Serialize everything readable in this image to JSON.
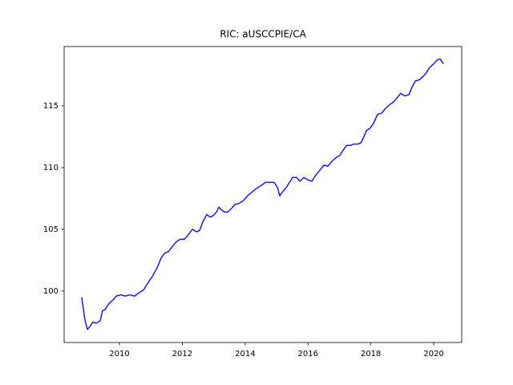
{
  "chart_data": {
    "type": "line",
    "title": "RIC: aUSCCPIE/CA",
    "x": [
      2008.8,
      2008.9,
      2008.98,
      2009.08,
      2009.16,
      2009.26,
      2009.39,
      2009.46,
      2009.54,
      2009.67,
      2009.8,
      2009.9,
      2010.05,
      2010.18,
      2010.33,
      2010.48,
      2010.64,
      2010.77,
      2010.89,
      2011.05,
      2011.2,
      2011.33,
      2011.45,
      2011.56,
      2011.68,
      2011.81,
      2011.94,
      2012.07,
      2012.17,
      2012.32,
      2012.45,
      2012.55,
      2012.65,
      2012.78,
      2012.88,
      2012.98,
      2013.09,
      2013.16,
      2013.24,
      2013.34,
      2013.44,
      2013.57,
      2013.67,
      2013.8,
      2013.93,
      2014.11,
      2014.26,
      2014.41,
      2014.54,
      2014.64,
      2014.77,
      2014.92,
      2015.03,
      2015.1,
      2015.18,
      2015.31,
      2015.41,
      2015.51,
      2015.64,
      2015.74,
      2015.87,
      2016.0,
      2016.12,
      2016.25,
      2016.38,
      2016.51,
      2016.63,
      2016.76,
      2016.89,
      2017.02,
      2017.14,
      2017.24,
      2017.35,
      2017.45,
      2017.58,
      2017.68,
      2017.78,
      2017.86,
      2017.98,
      2018.09,
      2018.21,
      2018.34,
      2018.47,
      2018.6,
      2018.72,
      2018.85,
      2018.95,
      2019.08,
      2019.21,
      2019.31,
      2019.41,
      2019.54,
      2019.67,
      2019.77,
      2019.87,
      2020.0,
      2020.1,
      2020.2,
      2020.31
    ],
    "series": [
      {
        "color": "#1c1ce0",
        "values": [
          99.5,
          97.7,
          96.9,
          97.2,
          97.5,
          97.4,
          97.6,
          98.4,
          98.5,
          99.0,
          99.3,
          99.6,
          99.7,
          99.6,
          99.7,
          99.6,
          99.9,
          100.1,
          100.6,
          101.2,
          101.9,
          102.7,
          103.1,
          103.2,
          103.6,
          104.0,
          104.2,
          104.2,
          104.5,
          105.0,
          104.8,
          104.9,
          105.6,
          106.2,
          106.0,
          106.1,
          106.4,
          106.8,
          106.6,
          106.4,
          106.4,
          106.7,
          107.0,
          107.1,
          107.3,
          107.8,
          108.1,
          108.4,
          108.6,
          108.8,
          108.8,
          108.8,
          108.4,
          107.7,
          108.0,
          108.4,
          108.8,
          109.2,
          109.2,
          108.9,
          109.2,
          109.0,
          108.9,
          109.4,
          109.8,
          110.2,
          110.1,
          110.5,
          110.8,
          111.0,
          111.5,
          111.8,
          111.8,
          111.9,
          111.9,
          112.0,
          112.5,
          113.0,
          113.2,
          113.6,
          114.3,
          114.4,
          114.8,
          115.1,
          115.3,
          115.7,
          116.0,
          115.8,
          115.9,
          116.5,
          117.0,
          117.1,
          117.4,
          117.7,
          118.1,
          118.4,
          118.7,
          118.8,
          118.4
        ]
      }
    ],
    "xlim": [
      2008.24,
      2020.89
    ],
    "ylim": [
      95.84,
      119.8
    ],
    "xticks": [
      2010,
      2012,
      2014,
      2016,
      2018,
      2020
    ],
    "yticks": [
      100,
      105,
      110,
      115
    ]
  }
}
